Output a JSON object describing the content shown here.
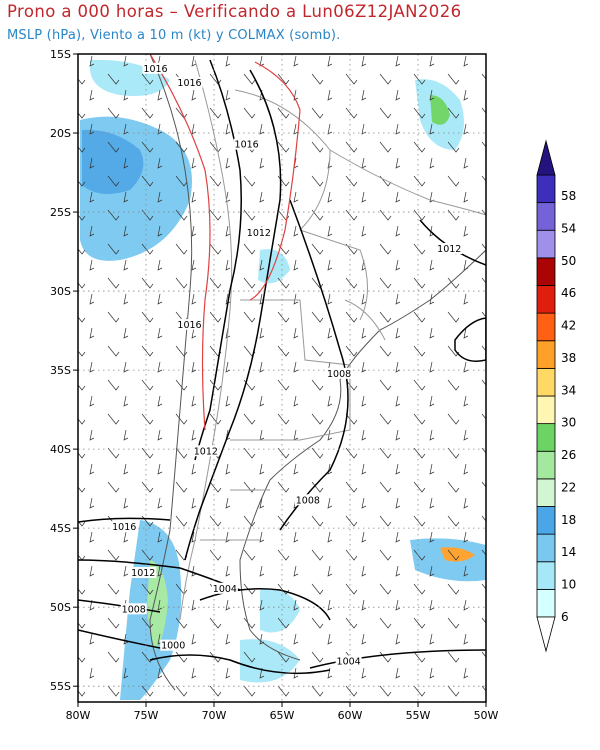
{
  "header": {
    "title": "Prono a 000 horas – Verificando a Lun06Z12JAN2026",
    "subtitle": "MSLP (hPa), Viento a 10 m (kt) y COLMAX (somb)."
  },
  "map": {
    "lon_range": [
      -80,
      -50
    ],
    "lat_range": [
      -56,
      -15
    ],
    "lon_ticks": [
      "80W",
      "75W",
      "70W",
      "65W",
      "60W",
      "55W",
      "50W"
    ],
    "lat_ticks": [
      "15S",
      "20S",
      "25S",
      "30S",
      "35S",
      "40S",
      "45S",
      "50S",
      "55S"
    ],
    "isobar_labels": [
      {
        "text": "1016",
        "lon": -74.3,
        "lat": -16.0
      },
      {
        "text": "1016",
        "lon": -71.8,
        "lat": -16.9
      },
      {
        "text": "1016",
        "lon": -67.6,
        "lat": -20.8
      },
      {
        "text": "1012",
        "lon": -66.7,
        "lat": -26.4
      },
      {
        "text": "1012",
        "lon": -52.7,
        "lat": -27.4
      },
      {
        "text": "1016",
        "lon": -71.8,
        "lat": -32.2
      },
      {
        "text": "1008",
        "lon": -60.8,
        "lat": -35.3
      },
      {
        "text": "1012",
        "lon": -70.6,
        "lat": -40.2
      },
      {
        "text": "1008",
        "lon": -63.1,
        "lat": -43.3
      },
      {
        "text": "1016",
        "lon": -76.6,
        "lat": -45.0
      },
      {
        "text": "1012",
        "lon": -75.2,
        "lat": -47.9
      },
      {
        "text": "1004",
        "lon": -69.2,
        "lat": -48.9
      },
      {
        "text": "1008",
        "lon": -75.9,
        "lat": -50.2
      },
      {
        "text": "1000",
        "lon": -73.0,
        "lat": -52.5
      },
      {
        "text": "1004",
        "lon": -60.1,
        "lat": -53.5
      }
    ]
  },
  "colorbar": {
    "labels": [
      "6",
      "10",
      "14",
      "18",
      "22",
      "26",
      "30",
      "34",
      "38",
      "42",
      "46",
      "50",
      "54",
      "58"
    ],
    "colors": [
      "#d6ffff",
      "#a6e8f8",
      "#78c8f0",
      "#4aa6e6",
      "#d2f5d2",
      "#a4e8a0",
      "#6cd464",
      "#fff6b4",
      "#ffd866",
      "#ffa028",
      "#ff6014",
      "#e01e0e",
      "#aa0404",
      "#a090ec",
      "#7462d8",
      "#3e2ebc"
    ],
    "end_colors": {
      "low": "#ffffff",
      "high": "#23137e"
    }
  }
}
